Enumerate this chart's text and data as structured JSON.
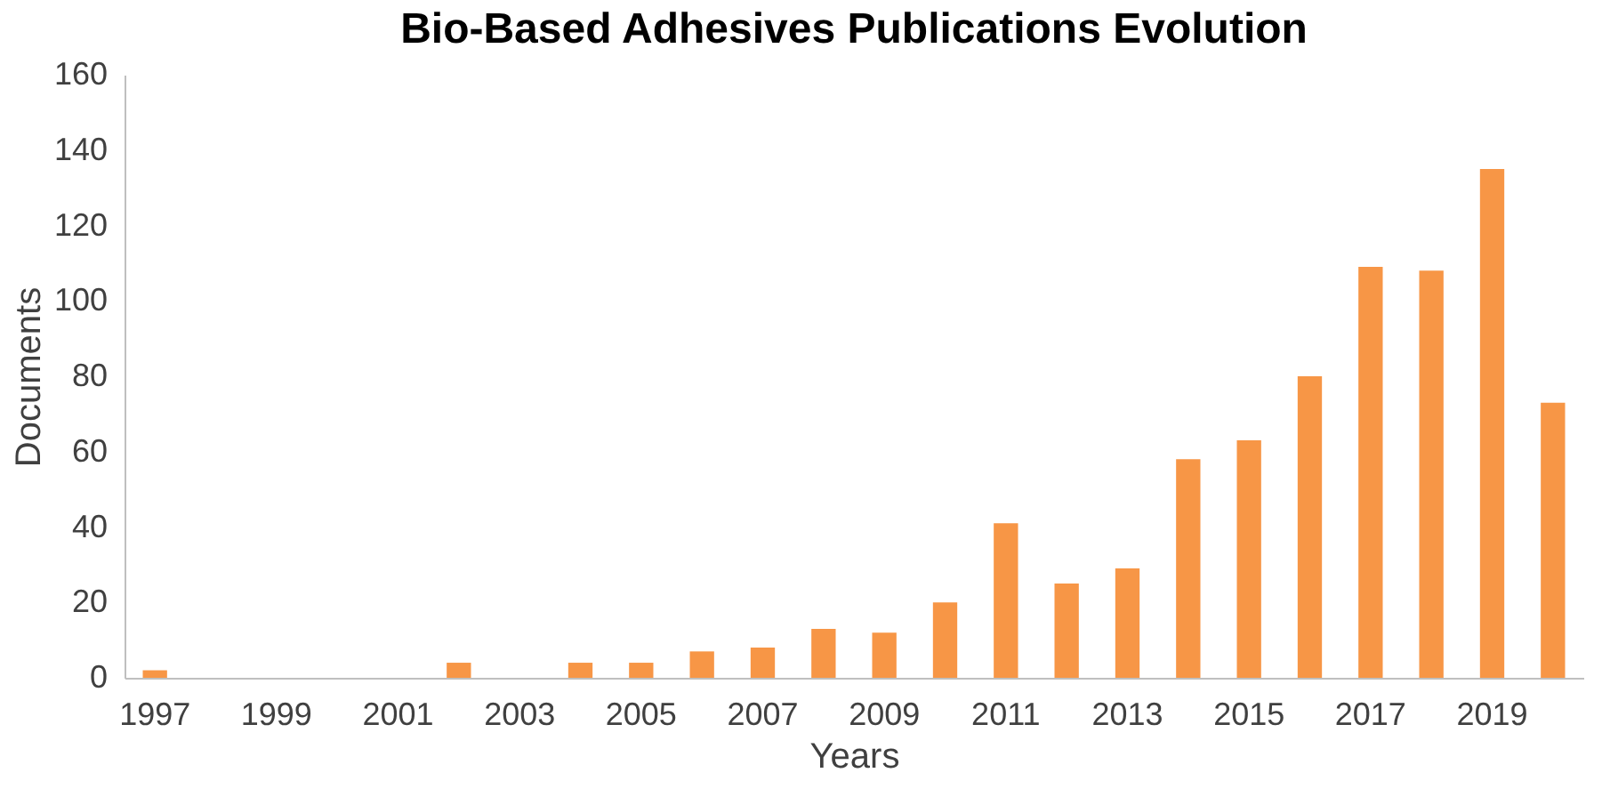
{
  "chart_data": {
    "type": "bar",
    "title": "Bio-Based Adhesives Publications Evolution",
    "xlabel": "Years",
    "ylabel": "Documents",
    "categories": [
      "1997",
      null,
      "1999",
      null,
      "2001",
      null,
      "2003",
      null,
      "2005",
      null,
      "2007",
      null,
      "2009",
      null,
      "2011",
      null,
      "2013",
      null,
      "2015",
      null,
      "2017",
      null,
      "2019",
      null
    ],
    "values": [
      2,
      0,
      0,
      0,
      0,
      4,
      0,
      4,
      4,
      7,
      8,
      13,
      12,
      20,
      41,
      25,
      29,
      58,
      63,
      80,
      109,
      108,
      135,
      73
    ],
    "color": "#f79646",
    "ylim": [
      0,
      160
    ],
    "yticks": [
      0,
      20,
      40,
      60,
      80,
      100,
      120,
      140,
      160
    ],
    "grid": false
  }
}
